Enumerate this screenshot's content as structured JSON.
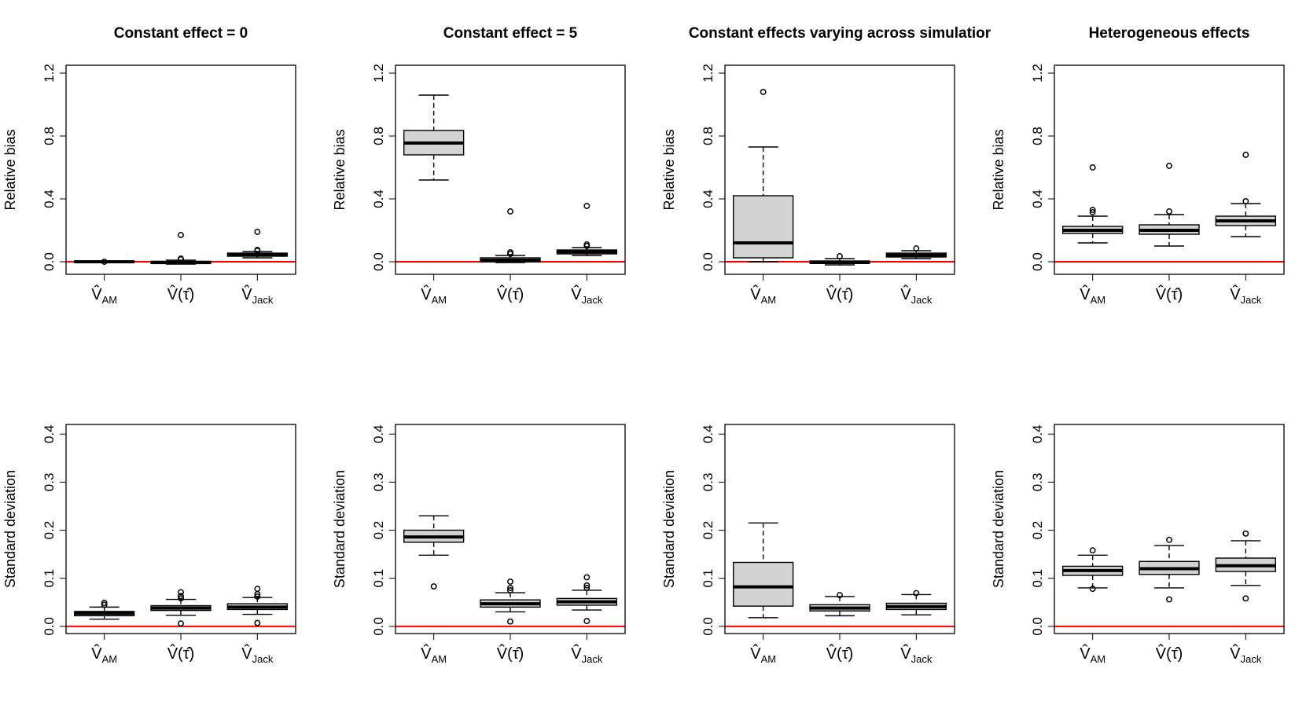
{
  "chart_data": [
    {
      "type": "boxplot",
      "title": "Constant effect = 0",
      "ylabel": "Relative bias",
      "ylim": [
        -0.08,
        1.25
      ],
      "yticks": [
        "0.0",
        "0.4",
        "0.8",
        "1.2"
      ],
      "reference_line": 0,
      "categories": [
        "V̂_AM",
        "V̂(τ̂)",
        "V̂_Jack"
      ],
      "boxes": [
        {
          "q1": -0.005,
          "median": 0.0,
          "q3": 0.005,
          "whisker_low": -0.005,
          "whisker_high": 0.005,
          "outliers": [
            0.0
          ]
        },
        {
          "q1": -0.012,
          "median": -0.005,
          "q3": 0.003,
          "whisker_low": -0.015,
          "whisker_high": 0.01,
          "outliers": [
            0.17,
            0.02,
            0.015
          ]
        },
        {
          "q1": 0.035,
          "median": 0.045,
          "q3": 0.055,
          "whisker_low": 0.025,
          "whisker_high": 0.065,
          "outliers": [
            0.19,
            0.075,
            0.07
          ]
        }
      ]
    },
    {
      "type": "boxplot",
      "title": "Constant effect = 5",
      "ylabel": "Relative bias",
      "ylim": [
        -0.08,
        1.25
      ],
      "yticks": [
        "0.0",
        "0.4",
        "0.8",
        "1.2"
      ],
      "reference_line": 0,
      "categories": [
        "V̂_AM",
        "V̂(τ̂)",
        "V̂_Jack"
      ],
      "boxes": [
        {
          "q1": 0.68,
          "median": 0.755,
          "q3": 0.835,
          "whisker_low": 0.52,
          "whisker_high": 1.06,
          "outliers": []
        },
        {
          "q1": 0.0,
          "median": 0.01,
          "q3": 0.025,
          "whisker_low": -0.005,
          "whisker_high": 0.04,
          "outliers": [
            0.32,
            0.06,
            0.05
          ]
        },
        {
          "q1": 0.05,
          "median": 0.063,
          "q3": 0.075,
          "whisker_low": 0.04,
          "whisker_high": 0.09,
          "outliers": [
            0.355,
            0.11,
            0.1
          ]
        }
      ]
    },
    {
      "type": "boxplot",
      "title": "Constant effects varying across simulatior",
      "ylabel": "Relative bias",
      "ylim": [
        -0.08,
        1.25
      ],
      "yticks": [
        "0.0",
        "0.4",
        "0.8",
        "1.2"
      ],
      "reference_line": 0,
      "categories": [
        "V̂_AM",
        "V̂(τ̂)",
        "V̂_Jack"
      ],
      "boxes": [
        {
          "q1": 0.025,
          "median": 0.12,
          "q3": 0.42,
          "whisker_low": 0.0,
          "whisker_high": 0.73,
          "outliers": [
            1.08
          ]
        },
        {
          "q1": -0.01,
          "median": -0.005,
          "q3": 0.005,
          "whisker_low": -0.02,
          "whisker_high": 0.02,
          "outliers": [
            0.035
          ]
        },
        {
          "q1": 0.03,
          "median": 0.042,
          "q3": 0.055,
          "whisker_low": 0.02,
          "whisker_high": 0.07,
          "outliers": [
            0.085
          ]
        }
      ]
    },
    {
      "type": "boxplot",
      "title": "Heterogeneous effects",
      "ylabel": "Relative bias",
      "ylim": [
        -0.08,
        1.25
      ],
      "yticks": [
        "0.0",
        "0.4",
        "0.8",
        "1.2"
      ],
      "reference_line": 0,
      "categories": [
        "V̂_AM",
        "V̂(τ̂)",
        "V̂_Jack"
      ],
      "boxes": [
        {
          "q1": 0.18,
          "median": 0.2,
          "q3": 0.225,
          "whisker_low": 0.12,
          "whisker_high": 0.29,
          "outliers": [
            0.6,
            0.33,
            0.315
          ]
        },
        {
          "q1": 0.175,
          "median": 0.2,
          "q3": 0.235,
          "whisker_low": 0.1,
          "whisker_high": 0.3,
          "outliers": [
            0.61,
            0.32
          ]
        },
        {
          "q1": 0.23,
          "median": 0.26,
          "q3": 0.29,
          "whisker_low": 0.16,
          "whisker_high": 0.37,
          "outliers": [
            0.68,
            0.385
          ]
        }
      ]
    },
    {
      "type": "boxplot",
      "title": "",
      "ylabel": "Standard deviation",
      "ylim": [
        -0.015,
        0.42
      ],
      "yticks": [
        "0.0",
        "0.1",
        "0.2",
        "0.3",
        "0.4"
      ],
      "reference_line": 0,
      "categories": [
        "V̂_AM",
        "V̂(τ̂)",
        "V̂_Jack"
      ],
      "boxes": [
        {
          "q1": 0.022,
          "median": 0.027,
          "q3": 0.031,
          "whisker_low": 0.015,
          "whisker_high": 0.04,
          "outliers": [
            0.049,
            0.045
          ]
        },
        {
          "q1": 0.033,
          "median": 0.038,
          "q3": 0.043,
          "whisker_low": 0.023,
          "whisker_high": 0.056,
          "outliers": [
            0.071,
            0.063,
            0.058,
            0.006
          ]
        },
        {
          "q1": 0.035,
          "median": 0.04,
          "q3": 0.047,
          "whisker_low": 0.025,
          "whisker_high": 0.06,
          "outliers": [
            0.078,
            0.067,
            0.062,
            0.007
          ]
        }
      ]
    },
    {
      "type": "boxplot",
      "title": "",
      "ylabel": "Standard deviation",
      "ylim": [
        -0.015,
        0.42
      ],
      "yticks": [
        "0.0",
        "0.1",
        "0.2",
        "0.3",
        "0.4"
      ],
      "reference_line": 0,
      "categories": [
        "V̂_AM",
        "V̂(τ̂)",
        "V̂_Jack"
      ],
      "boxes": [
        {
          "q1": 0.175,
          "median": 0.186,
          "q3": 0.2,
          "whisker_low": 0.148,
          "whisker_high": 0.23,
          "outliers": [
            0.083
          ]
        },
        {
          "q1": 0.04,
          "median": 0.047,
          "q3": 0.055,
          "whisker_low": 0.03,
          "whisker_high": 0.07,
          "outliers": [
            0.093,
            0.08,
            0.075,
            0.01
          ]
        },
        {
          "q1": 0.044,
          "median": 0.051,
          "q3": 0.058,
          "whisker_low": 0.034,
          "whisker_high": 0.075,
          "outliers": [
            0.102,
            0.085,
            0.08,
            0.011
          ]
        }
      ]
    },
    {
      "type": "boxplot",
      "title": "",
      "ylabel": "Standard deviation",
      "ylim": [
        -0.015,
        0.42
      ],
      "yticks": [
        "0.0",
        "0.1",
        "0.2",
        "0.3",
        "0.4"
      ],
      "reference_line": 0,
      "categories": [
        "V̂_AM",
        "V̂(τ̂)",
        "V̂_Jack"
      ],
      "boxes": [
        {
          "q1": 0.042,
          "median": 0.082,
          "q3": 0.133,
          "whisker_low": 0.018,
          "whisker_high": 0.215,
          "outliers": []
        },
        {
          "q1": 0.032,
          "median": 0.038,
          "q3": 0.045,
          "whisker_low": 0.022,
          "whisker_high": 0.062,
          "outliers": [
            0.065
          ]
        },
        {
          "q1": 0.035,
          "median": 0.041,
          "q3": 0.048,
          "whisker_low": 0.024,
          "whisker_high": 0.066,
          "outliers": [
            0.069
          ]
        }
      ]
    },
    {
      "type": "boxplot",
      "title": "",
      "ylabel": "Standard deviation",
      "ylim": [
        -0.015,
        0.42
      ],
      "yticks": [
        "0.0",
        "0.1",
        "0.2",
        "0.3",
        "0.4"
      ],
      "reference_line": 0,
      "categories": [
        "V̂_AM",
        "V̂(τ̂)",
        "V̂_Jack"
      ],
      "boxes": [
        {
          "q1": 0.106,
          "median": 0.116,
          "q3": 0.125,
          "whisker_low": 0.08,
          "whisker_high": 0.148,
          "outliers": [
            0.158,
            0.078
          ]
        },
        {
          "q1": 0.108,
          "median": 0.12,
          "q3": 0.135,
          "whisker_low": 0.08,
          "whisker_high": 0.168,
          "outliers": [
            0.18,
            0.056
          ]
        },
        {
          "q1": 0.114,
          "median": 0.126,
          "q3": 0.142,
          "whisker_low": 0.085,
          "whisker_high": 0.178,
          "outliers": [
            0.193,
            0.058
          ]
        }
      ]
    }
  ],
  "colors": {
    "box_fill": "#d3d3d3",
    "reference_line": "#ff0000",
    "axis": "#000000"
  }
}
